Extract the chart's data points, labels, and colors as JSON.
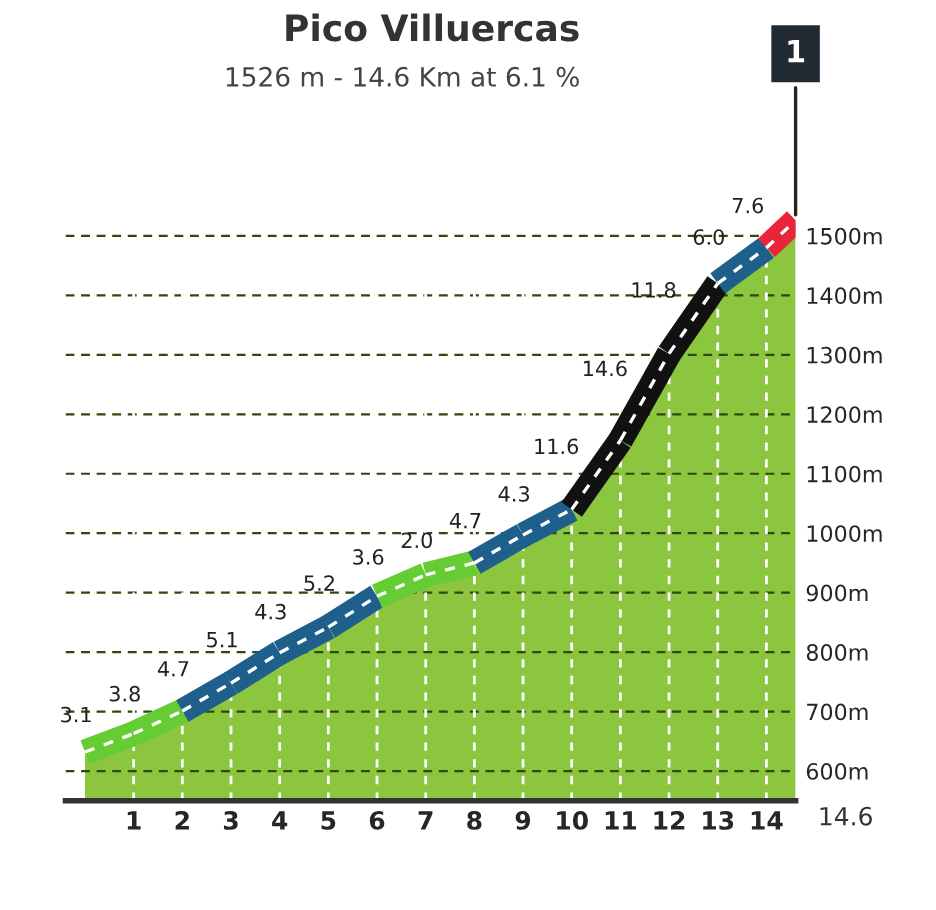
{
  "chart_data": {
    "type": "area",
    "title": "Pico Villuercas",
    "subtitle": "1526 m - 14.6 Km at 6.1 %",
    "x": [
      0,
      1,
      2,
      3,
      4,
      5,
      6,
      7,
      8,
      9,
      10,
      11,
      12,
      13,
      14,
      14.6
    ],
    "series": [
      {
        "color": "#8cc63f",
        "values": [
          632,
          663,
          701,
          748,
          799,
          842,
          894,
          930,
          950,
          997,
          1040,
          1156,
          1302,
          1420,
          1480,
          1526
        ],
        "colors": [
          "#66cc33",
          "#66cc33",
          "#66cc33",
          "#1f5f8b",
          "#1f5f8b",
          "#1f5f8b",
          "#1f5f8b",
          "#66cc33",
          "#66cc33",
          "#1f5f8b",
          "#1f5f8b",
          "#111111",
          "#111111",
          "#111111",
          "#1f5f8b",
          "#e8253a"
        ]
      }
    ],
    "annotations": [
      {
        "text": "3.1",
        "x": 0.5,
        "y": 647
      },
      {
        "text": "3.8",
        "x": 1.5,
        "y": 682
      },
      {
        "text": "4.7",
        "x": 2.5,
        "y": 724
      },
      {
        "text": "5.1",
        "x": 3.5,
        "y": 773
      },
      {
        "text": "4.3",
        "x": 4.5,
        "y": 820
      },
      {
        "text": "5.2",
        "x": 5.5,
        "y": 868
      },
      {
        "text": "3.6",
        "x": 6.5,
        "y": 912
      },
      {
        "text": "2.0",
        "x": 7.5,
        "y": 940
      },
      {
        "text": "4.7",
        "x": 8.5,
        "y": 973
      },
      {
        "text": "4.3",
        "x": 9.5,
        "y": 1018
      },
      {
        "text": "11.6",
        "x": 10.5,
        "y": 1098
      },
      {
        "text": "14.6",
        "x": 11.5,
        "y": 1229
      },
      {
        "text": "11.8",
        "x": 12.5,
        "y": 1361
      },
      {
        "text": "6.0",
        "x": 13.5,
        "y": 1450
      },
      {
        "text": "7.6",
        "x": 14.3,
        "y": 1503
      },
      {
        "text": "1",
        "x": 14.6,
        "y": 1526
      },
      {
        "text": "14.6",
        "x": 14.6,
        "y": 550
      }
    ],
    "xlim": [
      -0.4,
      14.6
    ],
    "xticks": [
      1,
      2,
      3,
      4,
      5,
      6,
      7,
      8,
      9,
      10,
      11,
      12,
      13,
      14
    ],
    "ylim": [
      550,
      1560
    ],
    "yticks": [
      {
        "value": 600,
        "label": "600m"
      },
      {
        "value": 700,
        "label": "700m"
      },
      {
        "value": 800,
        "label": "800m"
      },
      {
        "value": 900,
        "label": "900m"
      },
      {
        "value": 1000,
        "label": "1000m"
      },
      {
        "value": 1100,
        "label": "1100m"
      },
      {
        "value": 1200,
        "label": "1200m"
      },
      {
        "value": 1300,
        "label": "1300m"
      },
      {
        "value": 1400,
        "label": "1400m"
      },
      {
        "value": 1500,
        "label": "1500m"
      }
    ],
    "grid": true
  }
}
